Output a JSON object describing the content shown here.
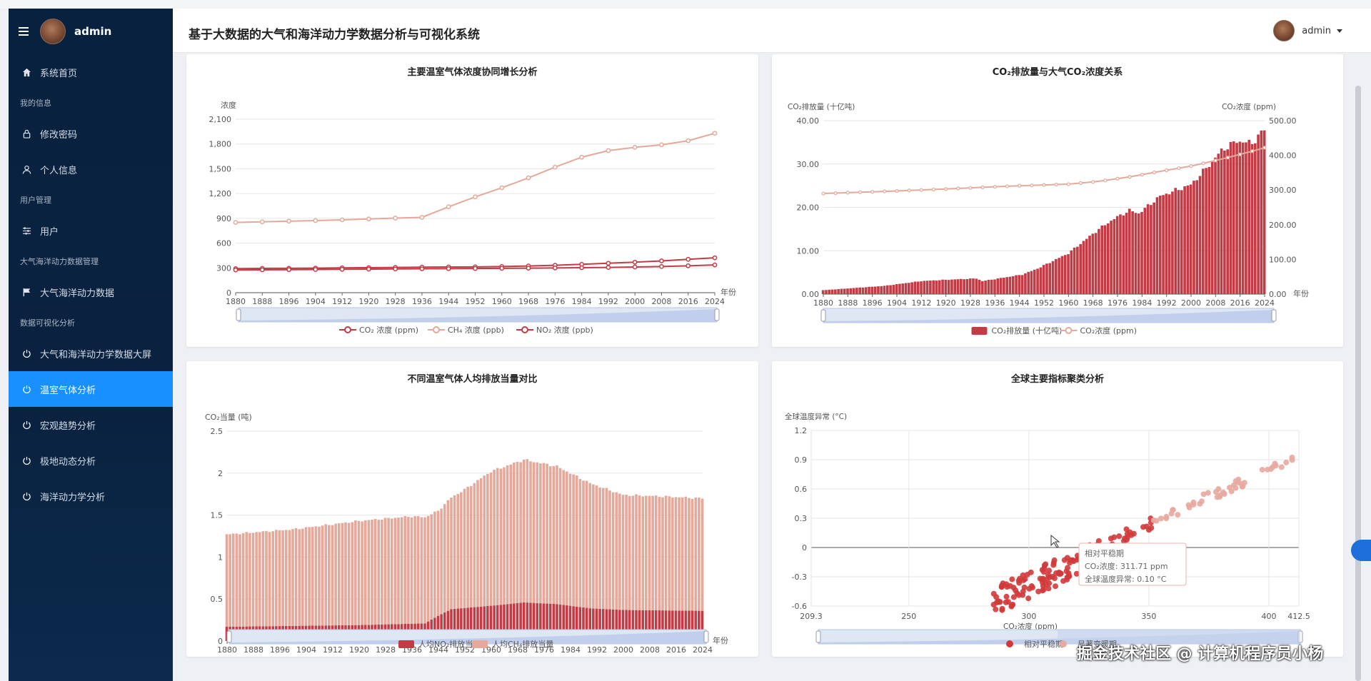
{
  "app": {
    "title": "基于大数据的大气和海洋动力学数据分析与可视化系统",
    "user": "admin"
  },
  "sidebar": {
    "user": "admin",
    "items": [
      {
        "kind": "item",
        "label": "系统首页",
        "icon": "home-icon"
      },
      {
        "kind": "group",
        "label": "我的信息"
      },
      {
        "kind": "item",
        "label": "修改密码",
        "icon": "lock-icon"
      },
      {
        "kind": "item",
        "label": "个人信息",
        "icon": "user-icon"
      },
      {
        "kind": "group",
        "label": "用户管理"
      },
      {
        "kind": "item",
        "label": "用户",
        "icon": "sliders-icon"
      },
      {
        "kind": "group",
        "label": "大气海洋动力数据管理"
      },
      {
        "kind": "item",
        "label": "大气海洋动力数据",
        "icon": "flag-icon"
      },
      {
        "kind": "group",
        "label": "数据可视化分析"
      },
      {
        "kind": "item",
        "label": "大气和海洋动力学数据大屏",
        "icon": "power-icon"
      },
      {
        "kind": "item",
        "label": "温室气体分析",
        "icon": "power-icon",
        "active": true
      },
      {
        "kind": "item",
        "label": "宏观趋势分析",
        "icon": "power-icon"
      },
      {
        "kind": "item",
        "label": "极地动态分析",
        "icon": "power-icon"
      },
      {
        "kind": "item",
        "label": "海洋动力学分析",
        "icon": "power-icon"
      }
    ]
  },
  "colors": {
    "accent": "#1890ff",
    "co2": "#c23b45",
    "ch4": "#e4a99a",
    "sidebar": "#0a2240"
  },
  "watermark": "掘金技术社区 @ 计算机程序员小杨",
  "chart_data": [
    {
      "type": "line",
      "title": "主要温室气体浓度协同增长分析",
      "ylabel": "浓度",
      "xlabel": "年份",
      "ylim": [
        0,
        2100
      ],
      "yticks": [
        "0",
        "300",
        "600",
        "900",
        "1,200",
        "1,500",
        "1,800",
        "2,100"
      ],
      "x": [
        1880,
        1888,
        1896,
        1904,
        1912,
        1920,
        1928,
        1936,
        1944,
        1952,
        1960,
        1968,
        1976,
        1984,
        1992,
        2000,
        2008,
        2016,
        2024
      ],
      "series": [
        {
          "name": "CO₂ 浓度 (ppm)",
          "color": "#c23b45",
          "values": [
            291,
            294,
            295,
            297,
            300,
            303,
            306,
            309,
            311,
            312,
            317,
            323,
            332,
            344,
            356,
            369,
            385,
            404,
            422
          ]
        },
        {
          "name": "CH₄ 浓度 (ppb)",
          "color": "#e4a99a",
          "values": [
            850,
            858,
            865,
            873,
            882,
            892,
            903,
            912,
            1040,
            1160,
            1270,
            1390,
            1520,
            1640,
            1720,
            1760,
            1790,
            1840,
            1930
          ]
        },
        {
          "name": "NO₂ 浓度 (ppb)",
          "color": "#c23b45",
          "values": [
            275,
            277,
            279,
            281,
            283,
            285,
            287,
            289,
            291,
            293,
            295,
            297,
            299,
            302,
            306,
            311,
            317,
            325,
            336
          ]
        }
      ],
      "legend": "bottom"
    },
    {
      "type": "bar",
      "title": "CO₂排放量与大气CO₂浓度关系",
      "ylabel": "CO₂排放量 (十亿吨)",
      "y2label": "CO₂浓度 (ppm)",
      "xlabel": "年份",
      "ylim": [
        0,
        40
      ],
      "y2lim": [
        0,
        500
      ],
      "yticks": [
        "0.00",
        "10.00",
        "20.00",
        "30.00",
        "40.00"
      ],
      "y2ticks": [
        "0.00",
        "100.00",
        "200.00",
        "300.00",
        "400.00",
        "500.00"
      ],
      "xticks": [
        1880,
        1888,
        1896,
        1904,
        1912,
        1920,
        1928,
        1936,
        1944,
        1952,
        1960,
        1968,
        1976,
        1984,
        1992,
        2000,
        2008,
        2016,
        2024
      ],
      "series": [
        {
          "name": "CO₂排放量 (十亿吨)",
          "color": "#c23b45",
          "points": [
            [
              1880,
              0.9
            ],
            [
              1900,
              1.9
            ],
            [
              1912,
              3.0
            ],
            [
              1920,
              3.3
            ],
            [
              1930,
              3.6
            ],
            [
              1932,
              3.0
            ],
            [
              1945,
              4.5
            ],
            [
              1950,
              5.9
            ],
            [
              1960,
              9.4
            ],
            [
              1970,
              15.0
            ],
            [
              1975,
              17.4
            ],
            [
              1980,
              19.3
            ],
            [
              1983,
              18.6
            ],
            [
              1990,
              22.6
            ],
            [
              2000,
              25.2
            ],
            [
              2005,
              29.0
            ],
            [
              2010,
              33.1
            ],
            [
              2015,
              35.3
            ],
            [
              2020,
              34.8
            ],
            [
              2024,
              38.0
            ]
          ]
        },
        {
          "name": "CO₂浓度 (ppm)",
          "color": "#e4a99a",
          "points": [
            [
              1880,
              290
            ],
            [
              1900,
              296
            ],
            [
              1920,
              303
            ],
            [
              1940,
              311
            ],
            [
              1960,
              317
            ],
            [
              1970,
              325
            ],
            [
              1980,
              338
            ],
            [
              1990,
              354
            ],
            [
              2000,
              369
            ],
            [
              2010,
              389
            ],
            [
              2020,
              412
            ],
            [
              2024,
              422
            ]
          ]
        }
      ],
      "legend": "bottom"
    },
    {
      "type": "bar",
      "title": "不同温室气体人均排放当量对比",
      "ylabel": "CO₂当量 (吨)",
      "xlabel": "年份",
      "ylim": [
        0,
        2.5
      ],
      "yticks": [
        "0",
        "0.5",
        "1",
        "1.5",
        "2",
        "2.5"
      ],
      "xticks": [
        1880,
        1888,
        1896,
        1904,
        1912,
        1920,
        1928,
        1936,
        1944,
        1952,
        1960,
        1968,
        1976,
        1984,
        1992,
        2000,
        2008,
        2016,
        2024
      ],
      "stacked": true,
      "series": [
        {
          "name": "人均NO₂排放当量",
          "color": "#c23b45",
          "points": [
            [
              1880,
              0.17
            ],
            [
              1920,
              0.19
            ],
            [
              1940,
              0.21
            ],
            [
              1944,
              0.3
            ],
            [
              1948,
              0.38
            ],
            [
              1960,
              0.42
            ],
            [
              1970,
              0.46
            ],
            [
              1980,
              0.44
            ],
            [
              1990,
              0.39
            ],
            [
              2000,
              0.37
            ],
            [
              2024,
              0.36
            ]
          ]
        },
        {
          "name": "人均CH₄排放当量",
          "color": "#e4a99a",
          "points": [
            [
              1880,
              1.1
            ],
            [
              1900,
              1.15
            ],
            [
              1920,
              1.24
            ],
            [
              1936,
              1.28
            ],
            [
              1944,
              1.25
            ],
            [
              1952,
              1.41
            ],
            [
              1960,
              1.6
            ],
            [
              1970,
              1.7
            ],
            [
              1980,
              1.64
            ],
            [
              1990,
              1.49
            ],
            [
              2000,
              1.37
            ],
            [
              2010,
              1.36
            ],
            [
              2024,
              1.34
            ]
          ]
        }
      ],
      "legend": "bottom"
    },
    {
      "type": "scatter",
      "title": "全球主要指标聚类分析",
      "ylabel": "全球温度异常 (°C)",
      "xlabel": "CO₂浓度 (ppm)",
      "xlim": [
        209.3,
        412.5
      ],
      "ylim": [
        -0.6,
        1.2
      ],
      "xticks": [
        "209.3",
        "250",
        "300",
        "350",
        "400",
        "412.5"
      ],
      "yticks": [
        "-0.6",
        "-0.3",
        "0",
        "0.3",
        "0.6",
        "0.9",
        "1.2"
      ],
      "series": [
        {
          "name": "相对平稳期",
          "color": "#d23a3a"
        },
        {
          "name": "显著变暖期",
          "color": "#e8a9a0"
        }
      ],
      "tooltip": {
        "title": "相对平稳期",
        "co2": "CO₂浓度: 311.71 ppm",
        "temp": "全球温度异常: 0.10 °C"
      },
      "legend": "bottom"
    }
  ]
}
